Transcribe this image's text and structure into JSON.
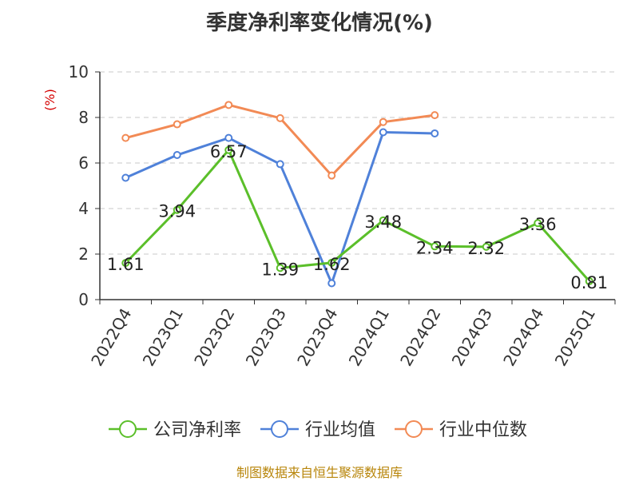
{
  "chart_data": {
    "type": "line",
    "title": "季度净利率变化情况(%)",
    "ylabel": "(%)",
    "xlabel": "",
    "categories": [
      "2022Q4",
      "2023Q1",
      "2023Q2",
      "2023Q3",
      "2023Q4",
      "2024Q1",
      "2024Q2",
      "2024Q3",
      "2024Q4",
      "2025Q1"
    ],
    "ylim": [
      0,
      10
    ],
    "yticks": [
      0,
      2,
      4,
      6,
      8,
      10
    ],
    "grid": true,
    "legend_position": "bottom",
    "series": [
      {
        "name": "公司净利率",
        "color": "#5bbf2a",
        "values": [
          1.61,
          3.94,
          6.57,
          1.39,
          1.62,
          3.48,
          2.34,
          2.32,
          3.36,
          0.81
        ],
        "labels": [
          "1.61",
          "3.94",
          "6.57",
          "1.39",
          "1.62",
          "3.48",
          "2.34",
          "2.32",
          "3.36",
          "0.81"
        ]
      },
      {
        "name": "行业均值",
        "color": "#4f81d9",
        "values": [
          5.35,
          6.35,
          7.1,
          5.95,
          0.72,
          7.35,
          7.3,
          null,
          null,
          null
        ]
      },
      {
        "name": "行业中位数",
        "color": "#f28a55",
        "values": [
          7.1,
          7.7,
          8.55,
          7.97,
          5.45,
          7.8,
          8.1,
          null,
          null,
          null
        ]
      }
    ]
  },
  "footer": {
    "source": "制图数据来自恒生聚源数据库"
  }
}
